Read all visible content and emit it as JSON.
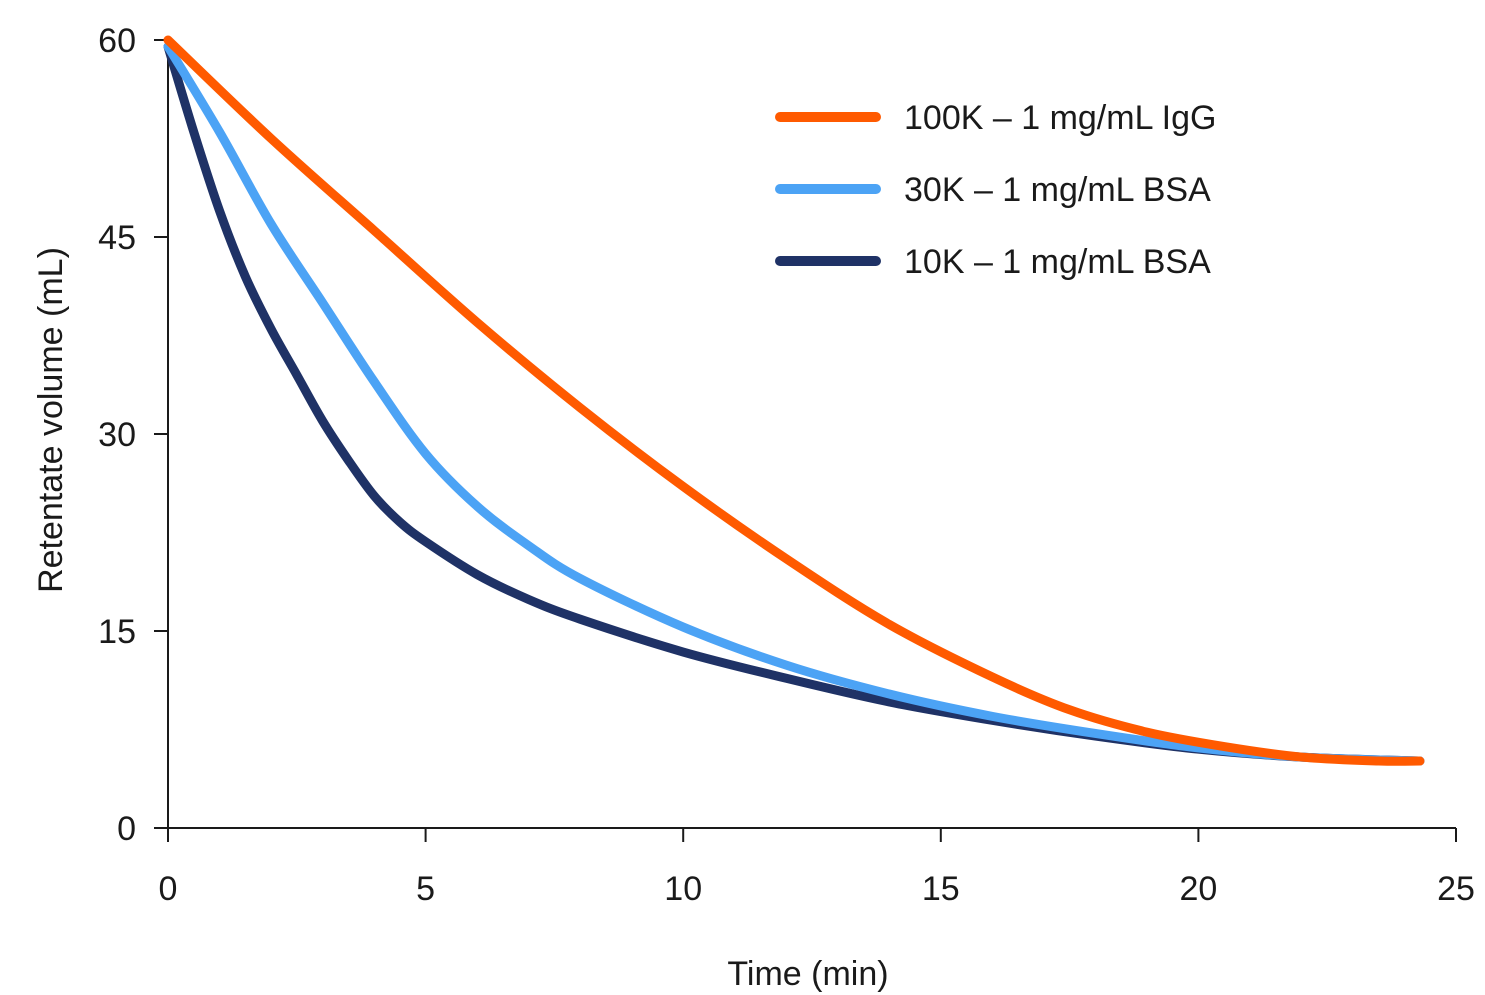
{
  "chart_data": {
    "type": "line",
    "xlabel": "Time (min)",
    "ylabel": "Retentate volume (mL)",
    "xlim": [
      0,
      25
    ],
    "ylim": [
      0,
      60
    ],
    "x_ticks": [
      "0",
      "5",
      "10",
      "15",
      "20",
      "25"
    ],
    "y_ticks": [
      "0",
      "15",
      "30",
      "45",
      "60"
    ],
    "grid": false,
    "legend_position": "top-right",
    "series": [
      {
        "name": "100K – 1 mg/mL IgG",
        "color": "#ff5a00",
        "x": [
          0,
          2,
          4,
          6,
          8,
          10,
          12,
          14,
          16,
          17.5,
          19,
          20.5,
          22,
          23.5,
          24.3
        ],
        "y": [
          60,
          52.5,
          45.5,
          38.5,
          32,
          26,
          20.5,
          15.5,
          11.5,
          9,
          7.3,
          6.2,
          5.4,
          5.1,
          5.1
        ]
      },
      {
        "name": "30K – 1 mg/mL BSA",
        "color": "#4ca3f5",
        "x": [
          0,
          1,
          2,
          3,
          4,
          5,
          6,
          7,
          8,
          10,
          12,
          14,
          16,
          18,
          20,
          22,
          24.3
        ],
        "y": [
          59.5,
          53,
          46,
          40,
          34,
          28.5,
          24.5,
          21.5,
          19,
          15.3,
          12.4,
          10.2,
          8.5,
          7.2,
          6.1,
          5.4,
          5.1
        ]
      },
      {
        "name": "10K – 1 mg/mL BSA",
        "color": "#1f3266",
        "x": [
          0,
          0.5,
          1,
          1.5,
          2,
          2.5,
          3,
          3.5,
          4,
          4.5,
          5,
          6,
          7,
          8,
          10,
          12,
          14,
          16,
          18,
          20,
          22,
          24.3
        ],
        "y": [
          59.5,
          53,
          47,
          42,
          38,
          34.5,
          31,
          28,
          25.3,
          23.3,
          21.8,
          19.3,
          17.4,
          15.9,
          13.4,
          11.4,
          9.6,
          8.2,
          7,
          6,
          5.4,
          5.1
        ]
      }
    ]
  }
}
